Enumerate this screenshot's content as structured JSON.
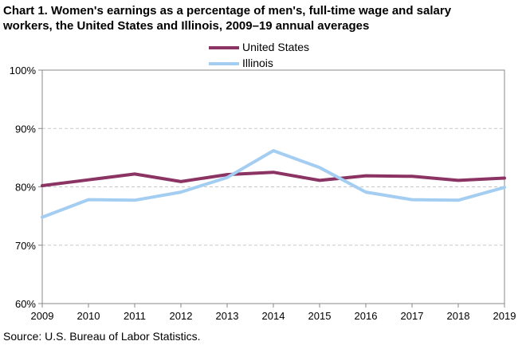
{
  "title": {
    "line1": "Chart 1. Women's earnings as a percentage of men's, full-time wage and salary",
    "line2": "workers, the United States and Illinois,  2009–19 annual averages"
  },
  "source": "Source:  U.S. Bureau of Labor Statistics.",
  "colors": {
    "united_states": "#8b3363",
    "illinois": "#a4cdf2",
    "gridline": "#c8c8c8",
    "axis": "#888888"
  },
  "chart_data": {
    "type": "line",
    "title": "Chart 1. Women's earnings as a percentage of men's, full-time wage and salary workers, the United States and Illinois,  2009–19 annual averages",
    "x": [
      2009,
      2010,
      2011,
      2012,
      2013,
      2014,
      2015,
      2016,
      2017,
      2018,
      2019
    ],
    "x_tick_labels": [
      "2009",
      "2010",
      "2011",
      "2012",
      "2013",
      "2014",
      "2015",
      "2016",
      "2017",
      "2018",
      "2019"
    ],
    "y_tick_labels": [
      "100%",
      "90%",
      "80%",
      "70%",
      "60%"
    ],
    "y_ticks": [
      100,
      90,
      80,
      70,
      60
    ],
    "ylim": [
      60,
      100
    ],
    "grid": "horizontal dashed",
    "legend": "top-center",
    "series": [
      {
        "name": "United States",
        "color_key": "united_states",
        "values": [
          80.2,
          81.2,
          82.2,
          80.9,
          82.1,
          82.5,
          81.1,
          81.9,
          81.8,
          81.1,
          81.5
        ]
      },
      {
        "name": "Illinois",
        "color_key": "illinois",
        "values": [
          74.8,
          77.8,
          77.7,
          79.1,
          81.6,
          86.2,
          83.3,
          79.1,
          77.8,
          77.7,
          79.9
        ]
      }
    ]
  }
}
